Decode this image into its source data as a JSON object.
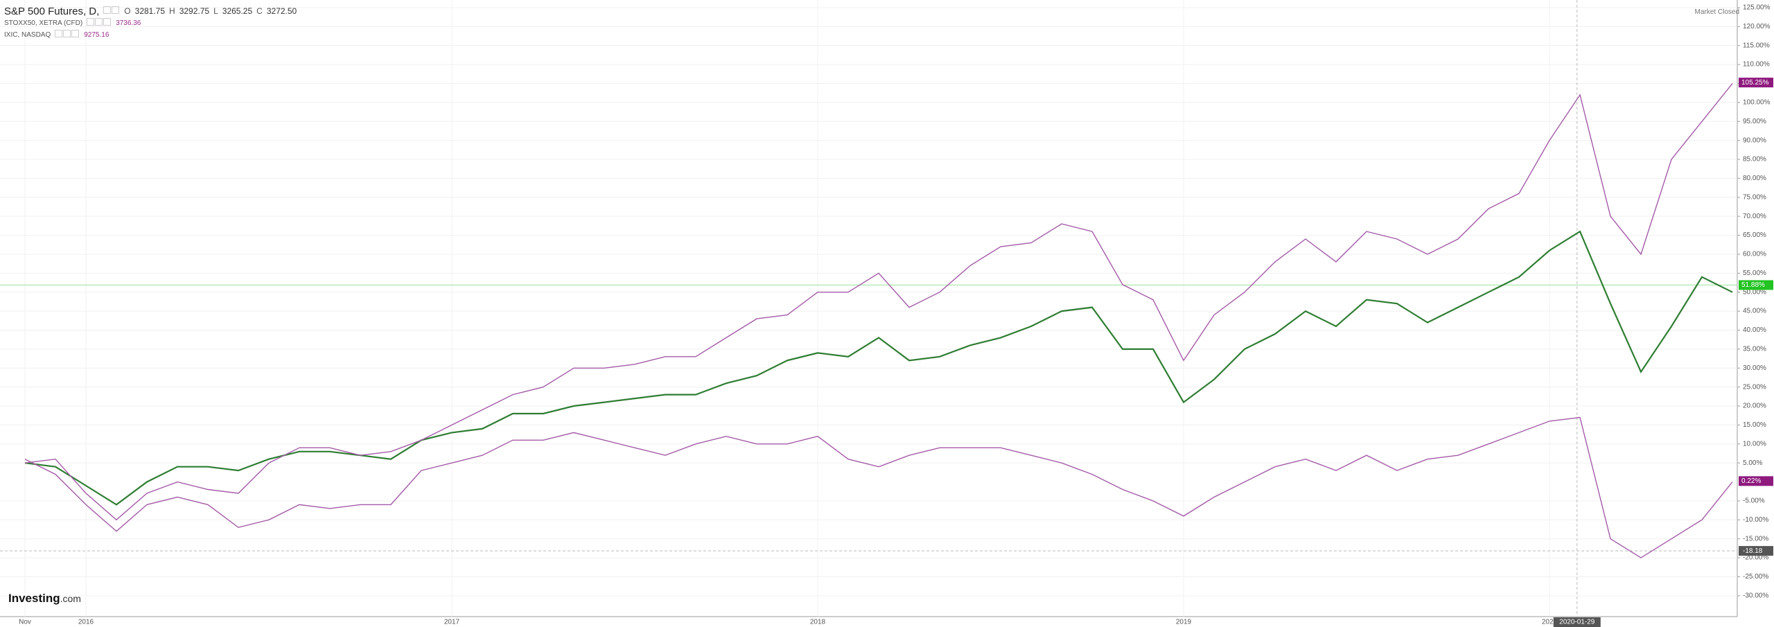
{
  "chart_data": {
    "type": "line",
    "categories": [
      "Nov",
      null,
      "2016",
      null,
      null,
      null,
      null,
      null,
      null,
      null,
      null,
      null,
      null,
      null,
      "2017",
      null,
      null,
      null,
      null,
      null,
      null,
      null,
      null,
      null,
      null,
      null,
      "2018",
      null,
      null,
      null,
      null,
      null,
      null,
      null,
      null,
      null,
      null,
      null,
      "2019",
      null,
      null,
      null,
      null,
      null,
      null,
      null,
      null,
      null,
      null,
      null,
      "2020",
      null,
      null,
      null,
      null,
      null,
      null
    ],
    "ylim": [
      -35.5,
      127
    ],
    "yticks": [
      {
        "value": 125,
        "label": "125.00%"
      },
      {
        "value": 120,
        "label": "120.00%"
      },
      {
        "value": 115,
        "label": "115.00%"
      },
      {
        "value": 110,
        "label": "110.00%"
      },
      {
        "value": 105,
        "label": "105.00%"
      },
      {
        "value": 100,
        "label": "100.00%"
      },
      {
        "value": 95,
        "label": "95.00%"
      },
      {
        "value": 90,
        "label": "90.00%"
      },
      {
        "value": 85,
        "label": "85.00%"
      },
      {
        "value": 80,
        "label": "80.00%"
      },
      {
        "value": 75,
        "label": "75.00%"
      },
      {
        "value": 70,
        "label": "70.00%"
      },
      {
        "value": 65,
        "label": "65.00%"
      },
      {
        "value": 60,
        "label": "60.00%"
      },
      {
        "value": 55,
        "label": "55.00%"
      },
      {
        "value": 50,
        "label": "50.00%"
      },
      {
        "value": 45,
        "label": "45.00%"
      },
      {
        "value": 40,
        "label": "40.00%"
      },
      {
        "value": 35,
        "label": "35.00%"
      },
      {
        "value": 30,
        "label": "30.00%"
      },
      {
        "value": 25,
        "label": "25.00%"
      },
      {
        "value": 20,
        "label": "20.00%"
      },
      {
        "value": 15,
        "label": "15.00%"
      },
      {
        "value": 10,
        "label": "10.00%"
      },
      {
        "value": 5,
        "label": "5.00%"
      },
      {
        "value": -5,
        "label": "-5.00%"
      },
      {
        "value": -10,
        "label": "-10.00%"
      },
      {
        "value": -15,
        "label": "-15.00%"
      },
      {
        "value": -20,
        "label": "-20.00%"
      },
      {
        "value": -25,
        "label": "-25.00%"
      },
      {
        "value": -30,
        "label": "-30.00%"
      }
    ],
    "grid": true,
    "series": [
      {
        "name": "S&P 500 Futures, D,",
        "color": "#2e7d32",
        "ohlc": [
          "O",
          "3281.75",
          "H",
          "3292.75",
          "L",
          "3265.25",
          "C",
          "3272.50"
        ],
        "values": [
          5,
          4,
          -1,
          -6,
          0,
          4,
          4,
          3,
          6,
          8,
          8,
          7,
          6,
          11,
          13,
          14,
          18,
          18,
          20,
          21,
          22,
          23,
          23,
          26,
          28,
          32,
          34,
          33,
          38,
          32,
          33,
          36,
          38,
          41,
          45,
          46,
          35,
          35,
          21,
          27,
          35,
          39,
          45,
          41,
          48,
          47,
          42,
          46,
          50,
          54,
          61,
          66,
          47,
          29,
          41,
          54,
          50
        ],
        "last": {
          "value": 51.88,
          "label": "51.88%"
        },
        "last_color": "#22c322"
      },
      {
        "name": "STOXX50, XETRA (CFD)",
        "color": "#a45ba8",
        "price": "3736.36",
        "values": [
          6,
          2,
          -6,
          -13,
          -6,
          -4,
          -6,
          -12,
          -10,
          -6,
          -7,
          -6,
          -6,
          3,
          5,
          7,
          11,
          11,
          13,
          11,
          9,
          7,
          10,
          12,
          10,
          10,
          12,
          6,
          4,
          7,
          9,
          9,
          9,
          7,
          5,
          2,
          -2,
          -5,
          -9,
          -4,
          0,
          4,
          6,
          3,
          7,
          3,
          6,
          7,
          10,
          13,
          16,
          17,
          -15,
          -20,
          -15,
          -10,
          0
        ],
        "last": {
          "value": 0.22,
          "label": "0.22%"
        },
        "last_color": "#8e1a7e"
      },
      {
        "name": "IXIC, NASDAQ",
        "color": "#a45ba8",
        "price": "9275.16",
        "values": [
          5,
          6,
          -3,
          -10,
          -3,
          0,
          -2,
          -3,
          5,
          9,
          9,
          7,
          8,
          11,
          15,
          19,
          23,
          25,
          30,
          30,
          31,
          33,
          33,
          38,
          43,
          44,
          50,
          50,
          55,
          46,
          50,
          57,
          62,
          63,
          68,
          66,
          52,
          48,
          32,
          44,
          50,
          58,
          64,
          58,
          66,
          64,
          60,
          64,
          72,
          76,
          90,
          102,
          70,
          60,
          85,
          95,
          105
        ],
        "last": {
          "value": 105.25,
          "label": "105.25%"
        },
        "last_color": "#8e1a7e"
      }
    ],
    "crosshair": {
      "x_label": "2020-01-29",
      "y_value": -18.18
    },
    "market_status": "Market Closed"
  },
  "branding": {
    "brand": "Investing",
    "suffix": ".com"
  }
}
